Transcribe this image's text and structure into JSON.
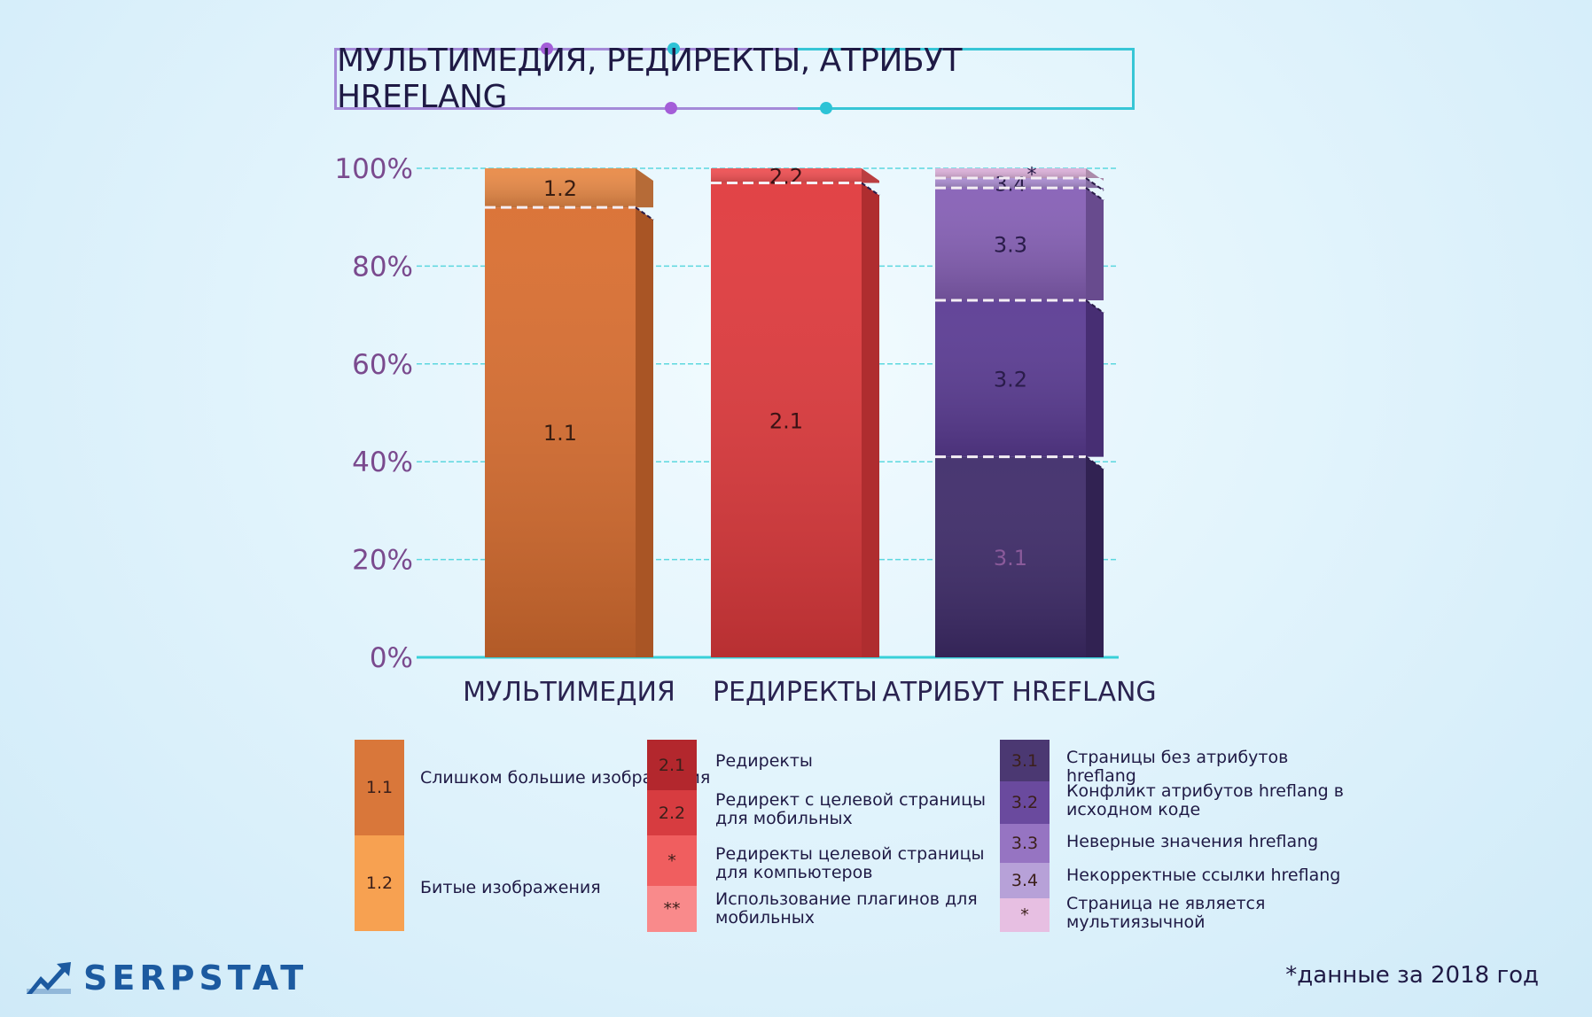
{
  "title": "МУЛЬТИМЕДИЯ, РЕДИРЕКТЫ, АТРИБУТ HREFLANG",
  "chart_data": {
    "type": "bar",
    "stacked": true,
    "y_ticks": [
      "0%",
      "20%",
      "40%",
      "60%",
      "80%",
      "100%"
    ],
    "ylim": [
      0,
      100
    ],
    "grid": true,
    "categories": [
      "МУЛЬТИМЕДИЯ",
      "РЕДИРЕКТЫ",
      "АТРИБУТ HREFLANG"
    ],
    "bars": [
      {
        "category": "МУЛЬТИМЕДИЯ",
        "segments": [
          {
            "label": "1.1",
            "value": 92,
            "color": "#d96e30",
            "label_color": "#3a1e12"
          },
          {
            "label": "1.2",
            "value": 8,
            "color": "#e98a47",
            "label_color": "#3a1e12"
          }
        ]
      },
      {
        "category": "РЕДИРЕКТЫ",
        "segments": [
          {
            "label": "2.1",
            "value": 97,
            "color": "#e03a3d",
            "label_color": "#3a1215"
          },
          {
            "label": "2.2",
            "value": 3,
            "color": "#ef5053",
            "label_color": "#3a1215"
          }
        ]
      },
      {
        "category": "АТРИБУТ HREFLANG",
        "segments": [
          {
            "label": "3.1",
            "value": 41,
            "color": "#3f2c6a",
            "label_color": "#8a5a9a"
          },
          {
            "label": "3.2",
            "value": 32,
            "color": "#5b3c94",
            "label_color": "#2a1c4a"
          },
          {
            "label": "3.3",
            "value": 23,
            "color": "#8660b6",
            "label_color": "#2a1c4a"
          },
          {
            "label": "3.4",
            "value": 2,
            "color": "#a98ccf",
            "label_color": "#2a1c4a"
          },
          {
            "label": "*",
            "value": 2,
            "color": "#dcb1da",
            "label_color": "#2a1c4a"
          }
        ]
      }
    ]
  },
  "legend": [
    {
      "items": [
        {
          "code": "1.1",
          "text": "Слишком большие изображения",
          "color": "#d9773a"
        },
        {
          "code": "1.2",
          "text": "Битые изображения",
          "color": "#f7a151"
        }
      ]
    },
    {
      "items": [
        {
          "code": "2.1",
          "text": "Редиректы",
          "color": "#b3272d"
        },
        {
          "code": "2.2",
          "text": "Редирект с целевой страницы для мобильных",
          "color": "#d73c40"
        },
        {
          "code": "*",
          "text": "Редиректы целевой страницы для компьютеров",
          "color": "#f05e5f"
        },
        {
          "code": "**",
          "text": "Использование плагинов для мобильных",
          "color": "#f98a8b"
        }
      ]
    },
    {
      "items": [
        {
          "code": "3.1",
          "text": "Страницы без атрибутов hreflang",
          "color": "#4b3872"
        },
        {
          "code": "3.2",
          "text": "Конфликт атрибутов hreflang в исходном коде",
          "color": "#6a4a9e"
        },
        {
          "code": "3.3",
          "text": "Неверные значения hreflang",
          "color": "#9674c2"
        },
        {
          "code": "3.4",
          "text": "Некорректные ссылки hreflang",
          "color": "#b7a1d8"
        },
        {
          "code": "*",
          "text": "Страница не является мультиязычной",
          "color": "#e7bfe2"
        }
      ]
    }
  ],
  "brand": {
    "name": "SERPSTAT"
  },
  "footnote": "*данные за 2018 год",
  "colors": {
    "grid": "#39d0d8",
    "tick_label": "#7a4a8e",
    "axis_label": "#2a2350"
  }
}
